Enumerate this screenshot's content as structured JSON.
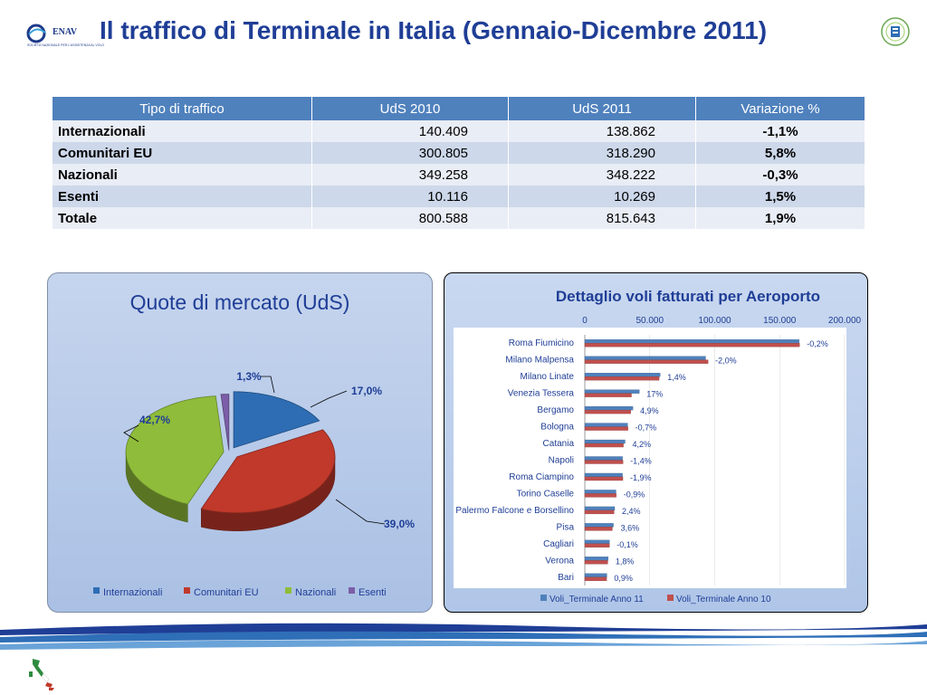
{
  "header": {
    "title": "Il traffico di Terminale in Italia (Gennaio-Dicembre 2011)",
    "logo_text": "ENAV",
    "logo_tagline": "SOCIETÀ NAZIONALE PER L'ASSISTENZA AL VOLO"
  },
  "table": {
    "headers": [
      "Tipo di traffico",
      "UdS 2010",
      "UdS 2011",
      "Variazione %"
    ],
    "rows": [
      {
        "name": "Internazionali",
        "uds2010": "140.409",
        "uds2011": "138.862",
        "var": "-1,1%"
      },
      {
        "name": "Comunitari EU",
        "uds2010": "300.805",
        "uds2011": "318.290",
        "var": "5,8%"
      },
      {
        "name": "Nazionali",
        "uds2010": "349.258",
        "uds2011": "348.222",
        "var": "-0,3%"
      },
      {
        "name": "Esenti",
        "uds2010": "10.116",
        "uds2011": "10.269",
        "var": "1,5%"
      },
      {
        "name": "Totale",
        "uds2010": "800.588",
        "uds2011": "815.643",
        "var": "1,9%"
      }
    ]
  },
  "chart_data": [
    {
      "type": "pie",
      "title": "Quote di mercato (UdS)",
      "categories": [
        "Internazionali",
        "Comunitari  EU",
        "Nazionali",
        "Esenti"
      ],
      "values": [
        17.0,
        39.0,
        42.7,
        1.3
      ],
      "labels": [
        "17,0%",
        "39,0%",
        "42,7%",
        "1,3%"
      ],
      "colors": [
        "#2e6db4",
        "#c0392b",
        "#8fbc3a",
        "#7b5ea7"
      ],
      "legend": "bottom"
    },
    {
      "type": "bar",
      "orientation": "horizontal",
      "title": "Dettaglio voli fatturati per Aeroporto",
      "categories": [
        "Roma Fiumicino",
        "Milano  Malpensa",
        "Milano  Linate",
        "Venezia Tessera",
        "Bergamo",
        "Bologna",
        "Catania",
        "Napoli",
        "Roma Ciampino",
        "Torino Caselle",
        "Palermo Falcone  e Borsellino",
        "Pisa",
        "Cagliari",
        "Verona",
        "Bari"
      ],
      "series": [
        {
          "name": "Voli_Terminale Anno 11",
          "color": "#4f81bd",
          "values": [
            165000,
            93000,
            58000,
            42000,
            37000,
            33000,
            31000,
            29000,
            29000,
            24000,
            23000,
            22000,
            19000,
            18000,
            17000
          ]
        },
        {
          "name": "Voli_Terminale Anno 10",
          "color": "#c0504d",
          "values": [
            165300,
            94900,
            57200,
            35900,
            35300,
            33200,
            29700,
            29400,
            29300,
            24200,
            22500,
            21200,
            19000,
            17700,
            16800
          ]
        }
      ],
      "annotations": [
        "-0,2%",
        "-2,0%",
        "1,4%",
        "17%",
        "4,9%",
        "-0,7%",
        "4,2%",
        "-1,4%",
        "-1,9%",
        "-0,9%",
        "2,4%",
        "3,6%",
        "-0,1%",
        "1,8%",
        "0,9%"
      ],
      "xticks": [
        "0",
        "50.000",
        "100.000",
        "150.000",
        "200.000"
      ],
      "xlim": [
        0,
        200000
      ],
      "grid": true,
      "legend": "bottom"
    }
  ]
}
